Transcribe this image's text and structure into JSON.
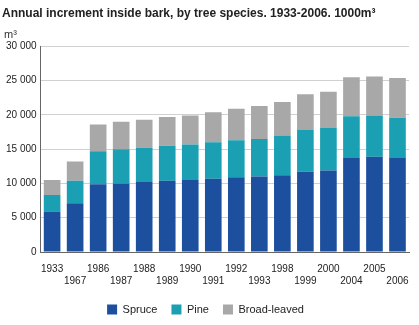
{
  "chart_data": {
    "type": "bar",
    "title": "Annual increment inside bark, by tree species. 1933-2006. 1000m³",
    "y_label": "m³",
    "categories": [
      "1933",
      "1967",
      "1986",
      "1987",
      "1988",
      "1989",
      "1990",
      "1991",
      "1992",
      "1993",
      "1998",
      "1999",
      "2000",
      "2004",
      "2005",
      "2006"
    ],
    "series": [
      {
        "name": "Spruce",
        "color": "#1c4f9e",
        "values": [
          5900,
          7100,
          9900,
          10000,
          10200,
          10400,
          10500,
          10700,
          10900,
          11000,
          11200,
          11700,
          11900,
          13700,
          13900,
          13700
        ]
      },
      {
        "name": "Pine",
        "color": "#1a9fb3",
        "values": [
          2400,
          3300,
          4800,
          5000,
          5000,
          5100,
          5200,
          5300,
          5400,
          5500,
          5800,
          6100,
          6200,
          6100,
          6000,
          5900
        ]
      },
      {
        "name": "Broad-leaved",
        "color": "#a8a8a8",
        "values": [
          2200,
          2800,
          3900,
          4000,
          4100,
          4200,
          4200,
          4400,
          4600,
          4800,
          4900,
          5200,
          5300,
          5700,
          5700,
          5800
        ]
      }
    ],
    "stacked": true,
    "ylim": [
      0,
      30000
    ],
    "yticks": [
      0,
      {
        "value": 5000,
        "label": "5 000"
      },
      {
        "value": 10000,
        "label": "10 000"
      },
      {
        "value": 15000,
        "label": "15 000"
      },
      {
        "value": 20000,
        "label": "20 000"
      },
      {
        "value": 25000,
        "label": "25 000"
      },
      {
        "value": 30000,
        "label": "30 000"
      }
    ],
    "grid": true,
    "legend": "bottom"
  }
}
